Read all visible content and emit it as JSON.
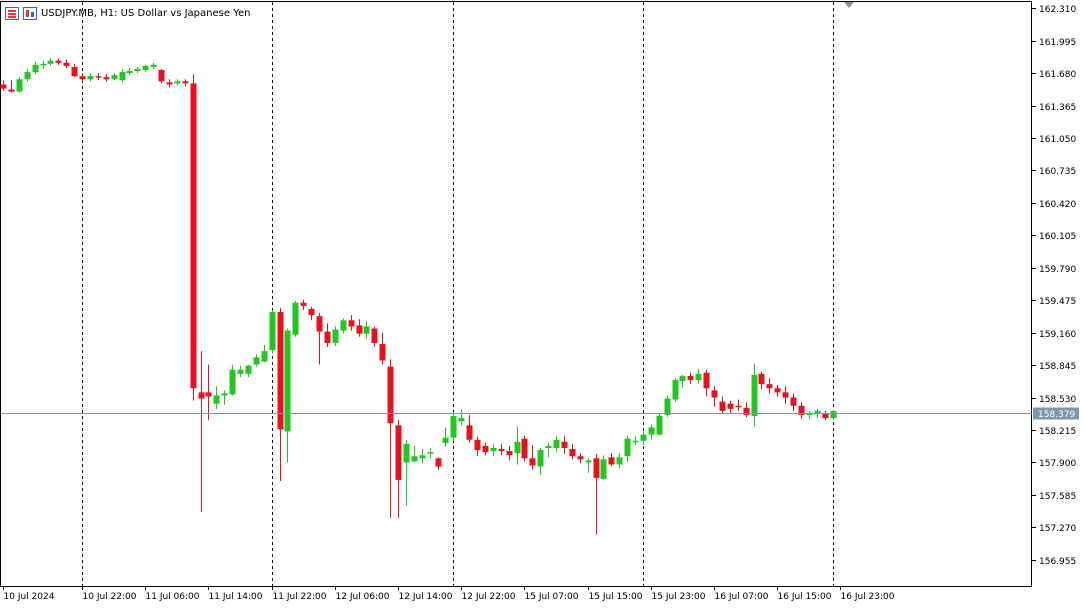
{
  "header": {
    "symbol_title": "USDJPY.MB, H1:  US Dollar vs Japanese Yen",
    "icons": [
      "chart-list-icon",
      "chart-window-icon"
    ]
  },
  "colors": {
    "background": "#ffffff",
    "frame": "#000000",
    "bull": "#22c722",
    "bear": "#e8121e",
    "separator": "#000000",
    "price_line": "#7f98a8",
    "price_label_bg": "#7f98a8",
    "price_label_text": "#ffffff"
  },
  "chart_data": {
    "type": "candlestick",
    "timeframe": "H1",
    "y_ticks": [
      "162.310",
      "161.995",
      "161.680",
      "161.365",
      "161.050",
      "160.735",
      "160.420",
      "160.105",
      "159.790",
      "159.475",
      "159.160",
      "158.845",
      "158.530",
      "158.215",
      "157.900",
      "157.585",
      "157.270",
      "156.955"
    ],
    "ylim": [
      156.7,
      162.38
    ],
    "x_tick_labels": [
      "10 Jul 2024",
      "10 Jul 22:00",
      "11 Jul 06:00",
      "11 Jul 14:00",
      "11 Jul 22:00",
      "12 Jul 06:00",
      "12 Jul 14:00",
      "12 Jul 22:00",
      "15 Jul 07:00",
      "15 Jul 15:00",
      "15 Jul 23:00",
      "16 Jul 07:00",
      "16 Jul 15:00",
      "16 Jul 23:00"
    ],
    "x_tick_bar_index": [
      0,
      10,
      18,
      26,
      34,
      42,
      50,
      58,
      66,
      74,
      82,
      90,
      98,
      106
    ],
    "day_separator_bar_index": [
      10,
      34,
      57,
      81,
      105
    ],
    "current_price": "158.379",
    "candles": [
      [
        161.57,
        161.61,
        161.51,
        161.53
      ],
      [
        161.52,
        161.61,
        161.49,
        161.5
      ],
      [
        161.5,
        161.64,
        161.49,
        161.62
      ],
      [
        161.62,
        161.72,
        161.6,
        161.69
      ],
      [
        161.69,
        161.79,
        161.67,
        161.76
      ],
      [
        161.76,
        161.8,
        161.72,
        161.77
      ],
      [
        161.77,
        161.82,
        161.75,
        161.8
      ],
      [
        161.8,
        161.82,
        161.76,
        161.78
      ],
      [
        161.78,
        161.81,
        161.73,
        161.75
      ],
      [
        161.74,
        161.77,
        161.64,
        161.65
      ],
      [
        161.65,
        161.68,
        161.6,
        161.62
      ],
      [
        161.62,
        161.68,
        161.6,
        161.65
      ],
      [
        161.65,
        161.68,
        161.61,
        161.64
      ],
      [
        161.64,
        161.67,
        161.6,
        161.62
      ],
      [
        161.62,
        161.68,
        161.61,
        161.66
      ],
      [
        161.61,
        161.72,
        161.59,
        161.69
      ],
      [
        161.68,
        161.73,
        161.66,
        161.7
      ],
      [
        161.7,
        161.74,
        161.68,
        161.72
      ],
      [
        161.71,
        161.76,
        161.69,
        161.75
      ],
      [
        161.74,
        161.78,
        161.72,
        161.76
      ],
      [
        161.71,
        161.72,
        161.58,
        161.6
      ],
      [
        161.59,
        161.62,
        161.54,
        161.57
      ],
      [
        161.58,
        161.62,
        161.56,
        161.6
      ],
      [
        161.6,
        161.62,
        161.55,
        161.58
      ],
      [
        161.58,
        161.67,
        158.5,
        158.62
      ],
      [
        158.58,
        158.98,
        157.42,
        158.52
      ],
      [
        158.58,
        158.85,
        158.31,
        158.54
      ],
      [
        158.47,
        158.64,
        158.42,
        158.55
      ],
      [
        158.55,
        158.6,
        158.46,
        158.57
      ],
      [
        158.56,
        158.85,
        158.55,
        158.8
      ],
      [
        158.76,
        158.84,
        158.73,
        158.8
      ],
      [
        158.76,
        158.85,
        158.73,
        158.84
      ],
      [
        158.85,
        158.95,
        158.83,
        158.92
      ],
      [
        158.88,
        159.04,
        158.87,
        158.98
      ],
      [
        158.99,
        159.38,
        158.96,
        159.36
      ],
      [
        159.36,
        159.4,
        157.72,
        158.22
      ],
      [
        158.2,
        159.2,
        157.9,
        159.18
      ],
      [
        159.14,
        159.47,
        159.12,
        159.45
      ],
      [
        159.45,
        159.48,
        159.38,
        159.42
      ],
      [
        159.39,
        159.41,
        159.28,
        159.33
      ],
      [
        159.32,
        159.35,
        158.85,
        159.17
      ],
      [
        159.17,
        159.25,
        159.02,
        159.06
      ],
      [
        159.06,
        159.22,
        159.03,
        159.19
      ],
      [
        159.18,
        159.3,
        159.15,
        159.28
      ],
      [
        159.28,
        159.33,
        159.18,
        159.22
      ],
      [
        159.23,
        159.29,
        159.12,
        159.15
      ],
      [
        159.15,
        159.27,
        159.1,
        159.22
      ],
      [
        159.2,
        159.22,
        159.02,
        159.06
      ],
      [
        159.05,
        159.16,
        158.85,
        158.89
      ],
      [
        158.83,
        158.9,
        157.36,
        158.28
      ],
      [
        158.26,
        158.31,
        157.36,
        157.73
      ],
      [
        157.9,
        158.12,
        157.48,
        158.08
      ],
      [
        157.91,
        158.06,
        157.9,
        157.96
      ],
      [
        157.94,
        158.03,
        157.89,
        157.97
      ],
      [
        157.99,
        158.04,
        157.94,
        158.0
      ],
      [
        157.94,
        157.95,
        157.83,
        157.86
      ],
      [
        158.09,
        158.24,
        158.05,
        158.14
      ],
      [
        158.14,
        158.39,
        158.11,
        158.35
      ],
      [
        158.3,
        158.41,
        158.26,
        158.33
      ],
      [
        158.26,
        158.36,
        158.09,
        158.12
      ],
      [
        158.12,
        158.15,
        157.96,
        158.02
      ],
      [
        158.06,
        158.09,
        157.97,
        158.0
      ],
      [
        158.01,
        158.08,
        157.96,
        158.04
      ],
      [
        158.03,
        158.08,
        157.97,
        158.01
      ],
      [
        158.01,
        158.06,
        157.92,
        157.97
      ],
      [
        157.99,
        158.25,
        157.88,
        158.1
      ],
      [
        158.13,
        158.16,
        157.91,
        157.94
      ],
      [
        157.94,
        158.07,
        157.83,
        157.87
      ],
      [
        157.86,
        158.04,
        157.78,
        158.02
      ],
      [
        158.04,
        158.09,
        157.95,
        158.06
      ],
      [
        158.04,
        158.16,
        158.0,
        158.12
      ],
      [
        158.1,
        158.16,
        157.98,
        158.04
      ],
      [
        158.03,
        158.08,
        157.93,
        157.96
      ],
      [
        157.96,
        157.99,
        157.89,
        157.93
      ],
      [
        157.9,
        157.94,
        157.8,
        157.92
      ],
      [
        157.94,
        157.98,
        157.2,
        157.75
      ],
      [
        157.74,
        157.97,
        157.73,
        157.93
      ],
      [
        157.95,
        157.99,
        157.86,
        157.88
      ],
      [
        157.88,
        157.99,
        157.84,
        157.95
      ],
      [
        157.96,
        158.16,
        157.91,
        158.13
      ],
      [
        158.1,
        158.16,
        158.07,
        158.11
      ],
      [
        158.11,
        158.2,
        158.07,
        158.17
      ],
      [
        158.17,
        158.27,
        158.12,
        158.24
      ],
      [
        158.17,
        158.37,
        158.16,
        158.35
      ],
      [
        158.36,
        158.55,
        158.34,
        158.52
      ],
      [
        158.51,
        158.72,
        158.49,
        158.7
      ],
      [
        158.69,
        158.75,
        158.62,
        158.74
      ],
      [
        158.74,
        158.77,
        158.66,
        158.7
      ],
      [
        158.7,
        158.81,
        158.67,
        158.76
      ],
      [
        158.77,
        158.8,
        158.54,
        158.62
      ],
      [
        158.6,
        158.64,
        158.44,
        158.53
      ],
      [
        158.49,
        158.54,
        158.37,
        158.4
      ],
      [
        158.47,
        158.5,
        158.38,
        158.42
      ],
      [
        158.45,
        158.51,
        158.4,
        158.44
      ],
      [
        158.43,
        158.48,
        158.34,
        158.36
      ],
      [
        158.35,
        158.86,
        158.25,
        158.75
      ],
      [
        158.76,
        158.78,
        158.61,
        158.66
      ],
      [
        158.66,
        158.72,
        158.57,
        158.62
      ],
      [
        158.62,
        158.65,
        158.54,
        158.58
      ],
      [
        158.58,
        158.64,
        158.47,
        158.53
      ],
      [
        158.53,
        158.57,
        158.4,
        158.45
      ],
      [
        158.45,
        158.48,
        158.32,
        158.36
      ],
      [
        158.36,
        158.4,
        158.32,
        158.38
      ],
      [
        158.38,
        158.42,
        158.33,
        158.4
      ],
      [
        158.37,
        158.4,
        158.31,
        158.33
      ],
      [
        158.33,
        158.41,
        158.31,
        158.4
      ]
    ]
  }
}
